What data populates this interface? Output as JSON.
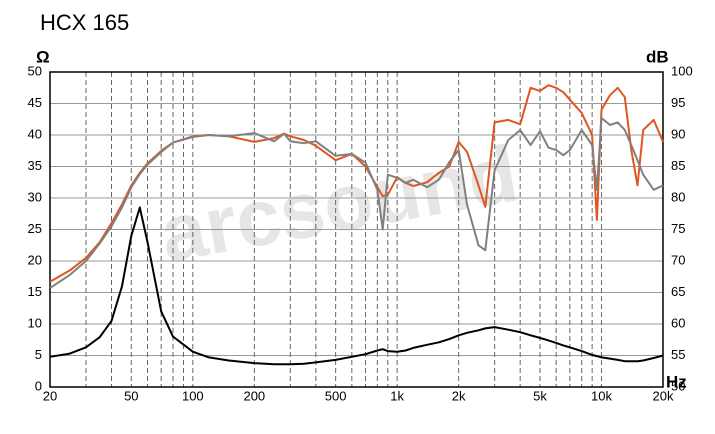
{
  "chart_data": {
    "type": "line",
    "title": "HCX 165",
    "watermark": "arcsound",
    "y_label": "Ω",
    "y2_label": "dB",
    "x_label": "Hz",
    "log_x": true,
    "grid": true,
    "xlim": [
      20,
      20000
    ],
    "xticks": [
      20,
      50,
      100,
      200,
      500,
      {
        "value": 1000,
        "label": "1k"
      },
      {
        "value": 2000,
        "label": "2k"
      },
      {
        "value": 5000,
        "label": "5k"
      },
      {
        "value": 10000,
        "label": "10k"
      },
      {
        "value": 20000,
        "label": "20k"
      }
    ],
    "xminorticks": [
      30,
      40,
      60,
      70,
      80,
      90,
      300,
      400,
      600,
      700,
      800,
      900,
      3000,
      4000,
      6000,
      7000,
      8000,
      9000
    ],
    "ylim": [
      0,
      50
    ],
    "yticks": [
      0,
      5,
      10,
      15,
      20,
      25,
      30,
      35,
      40,
      45,
      50
    ],
    "y2lim": [
      50,
      100
    ],
    "y2ticks": [
      50,
      55,
      60,
      65,
      70,
      75,
      80,
      85,
      90,
      95,
      100
    ],
    "x": [
      20,
      25,
      30,
      35,
      40,
      45,
      50,
      55,
      60,
      70,
      80,
      100,
      120,
      150,
      200,
      250,
      280,
      300,
      350,
      400,
      500,
      600,
      700,
      800,
      850,
      900,
      1000,
      1100,
      1200,
      1400,
      1600,
      1800,
      2000,
      2200,
      2500,
      2700,
      3000,
      3500,
      4000,
      4500,
      5000,
      5500,
      6000,
      6500,
      7000,
      8000,
      9000,
      9500,
      10000,
      11000,
      12000,
      13000,
      14000,
      15000,
      16000,
      18000,
      20000
    ],
    "series": [
      {
        "color": "#e0561f",
        "axis": "y2",
        "values": [
          66.7,
          68.5,
          70.5,
          73,
          76,
          79,
          82,
          84,
          85.5,
          87.5,
          88.8,
          89.7,
          90,
          89.8,
          88.9,
          89.5,
          90.2,
          89.8,
          89.2,
          88.3,
          86,
          87,
          85,
          81.7,
          80.3,
          80.5,
          83.3,
          82.4,
          81.9,
          82.5,
          84,
          85,
          88.9,
          87.3,
          82,
          78.6,
          92,
          92.4,
          91.7,
          97.5,
          97,
          97.9,
          97.5,
          96.8,
          95.6,
          93.5,
          90,
          76.5,
          94,
          96.3,
          97.5,
          96,
          87.6,
          82,
          90.8,
          92.4,
          88.9
        ]
      },
      {
        "color": "#808080",
        "axis": "y2",
        "values": [
          65.7,
          67.8,
          70,
          72.8,
          75.5,
          78.5,
          81.7,
          83.8,
          85.3,
          87.3,
          88.8,
          89.8,
          90,
          89.8,
          90.3,
          89,
          90.2,
          89,
          88.7,
          89,
          86.7,
          87,
          85.6,
          81.3,
          75,
          83.7,
          83.2,
          82.4,
          82.9,
          81.7,
          82.9,
          85.7,
          87.6,
          78.9,
          72.5,
          71.7,
          84.4,
          89.2,
          90.8,
          88.4,
          90.6,
          88,
          87.6,
          86.8,
          87.6,
          90.8,
          88.4,
          81.3,
          92.7,
          91.6,
          92,
          90.8,
          88.4,
          86,
          83.7,
          81.3,
          82
        ]
      },
      {
        "color": "#000000",
        "values": [
          4.8,
          5.3,
          6.3,
          7.9,
          10.5,
          16,
          24,
          28.5,
          23,
          12,
          8,
          5.6,
          4.7,
          4.2,
          3.8,
          3.6,
          3.6,
          3.6,
          3.7,
          3.9,
          4.3,
          4.8,
          5.2,
          5.8,
          6,
          5.7,
          5.6,
          5.8,
          6.2,
          6.7,
          7.1,
          7.6,
          8.2,
          8.6,
          9,
          9.3,
          9.5,
          9.1,
          8.7,
          8.2,
          7.8,
          7.4,
          7,
          6.6,
          6.3,
          5.7,
          5.1,
          4.9,
          4.7,
          4.5,
          4.3,
          4.1,
          4.1,
          4.1,
          4.2,
          4.6,
          5
        ]
      }
    ]
  }
}
